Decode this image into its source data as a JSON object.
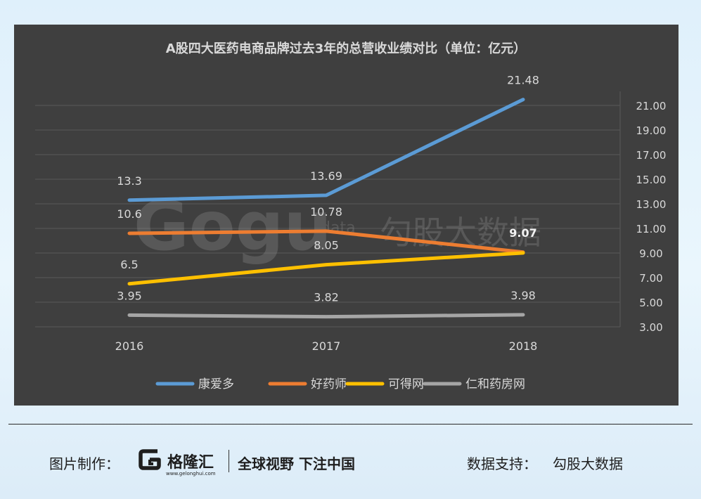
{
  "chart_data": {
    "type": "line",
    "title": "A股四大医药电商品牌过去3年的总营收业绩对比（单位：亿元）",
    "categories": [
      "2016",
      "2017",
      "2018"
    ],
    "y_ticks": [
      "3.00",
      "5.00",
      "7.00",
      "9.00",
      "11.00",
      "13.00",
      "15.00",
      "17.00",
      "19.00",
      "21.00"
    ],
    "ylim": [
      3,
      23
    ],
    "y_axis_side": "right",
    "grid": true,
    "legend_position": "bottom",
    "series": [
      {
        "name": "康爱多",
        "values": [
          13.3,
          13.69,
          21.48
        ],
        "labels": [
          "13.3",
          "13.69",
          "21.48"
        ],
        "color": "#5b9bd5"
      },
      {
        "name": "好药师",
        "values": [
          10.6,
          10.78,
          9.07
        ],
        "labels": [
          "10.6",
          "10.78",
          "9.07"
        ],
        "color": "#ed7d31"
      },
      {
        "name": "可得网",
        "values": [
          6.5,
          8.05,
          9.01
        ],
        "labels": [
          "6.5",
          "8.05",
          ""
        ],
        "color": "#ffc000"
      },
      {
        "name": "仁和药房网",
        "values": [
          3.95,
          3.82,
          3.98
        ],
        "labels": [
          "3.95",
          "3.82",
          "3.98"
        ],
        "color": "#a5a5a5"
      }
    ],
    "background": "#3f3f3f",
    "text_color": "#d9d9d9"
  },
  "watermark": {
    "logo": "Gogu",
    "sub": "data",
    "text": "勾股大数据"
  },
  "footer": {
    "credit_label": "图片制作：",
    "brand_name": "格隆汇",
    "brand_url": "www.gelonghui.com",
    "slogan": "全球视野 下注中国",
    "source_label": "数据支持：",
    "source_name": "勾股大数据"
  }
}
